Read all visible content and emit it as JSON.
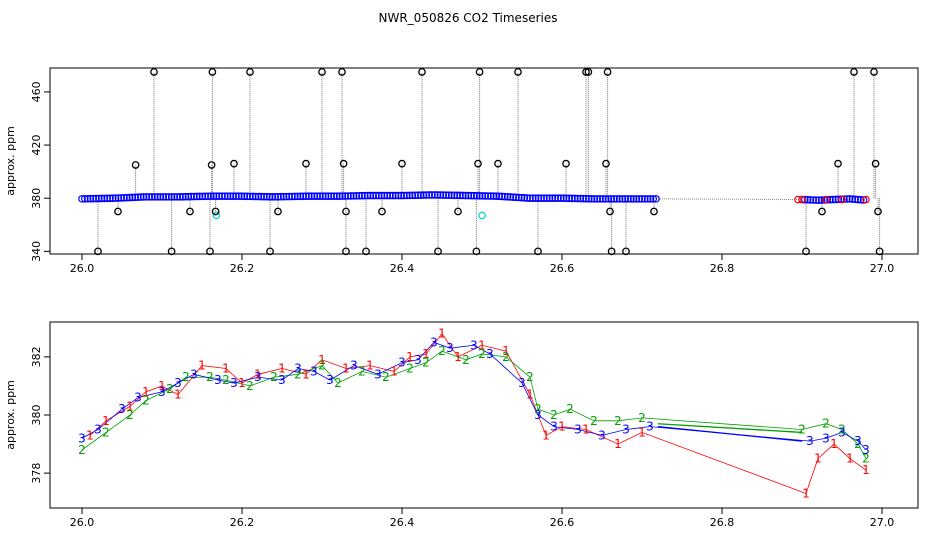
{
  "chart_data": {
    "title": "NWR_050826  CO2 Timeseries",
    "panels": [
      {
        "type": "scatter",
        "ylabel": "approx. ppm",
        "xlim": [
          26.0,
          27.0
        ],
        "ylim": [
          338,
          478
        ],
        "xticks": [
          {
            "value": 26.0,
            "label": "26.0"
          },
          {
            "value": 26.2,
            "label": "26.2"
          },
          {
            "value": 26.4,
            "label": "26.4"
          },
          {
            "value": 26.6,
            "label": "26.6"
          },
          {
            "value": 26.8,
            "label": "26.8"
          },
          {
            "value": 27.0,
            "label": "27.0"
          }
        ],
        "yticks": [
          {
            "value": 340,
            "label": "340"
          },
          {
            "value": 380,
            "label": "380"
          },
          {
            "value": 420,
            "label": "420"
          },
          {
            "value": 460,
            "label": "460"
          }
        ],
        "baseline": {
          "color": "#0000ff",
          "edge_color": "#008000",
          "x": [
            26.0,
            26.04,
            26.08,
            26.12,
            26.16,
            26.2,
            26.24,
            26.28,
            26.32,
            26.36,
            26.4,
            26.44,
            26.48,
            26.52,
            26.56,
            26.6,
            26.64,
            26.68,
            26.72
          ],
          "y": [
            379.5,
            380,
            381,
            381,
            381.5,
            381.5,
            381,
            381.5,
            381.5,
            382,
            382,
            382.5,
            382,
            381.5,
            380,
            380,
            379.5,
            379.5,
            379.5
          ],
          "x2": [
            26.9,
            26.92,
            26.94,
            26.96,
            26.98
          ],
          "y2": [
            379,
            378.5,
            379,
            379.5,
            378.5
          ]
        },
        "connector": {
          "x": [
            26.72,
            26.9
          ],
          "y": [
            379.5,
            379
          ]
        },
        "red_points": {
          "color": "#ff0000",
          "x": [
            26.895,
            26.9,
            26.93,
            26.95,
            26.98
          ],
          "y": [
            379,
            379,
            379,
            379,
            379
          ]
        },
        "cyan_points": {
          "color": "#00d0d0",
          "x": [
            26.168,
            26.5
          ],
          "y": [
            367,
            367
          ]
        },
        "outliers": {
          "color": "#000000",
          "x": [
            26.02,
            26.045,
            26.067,
            26.09,
            26.112,
            26.135,
            26.16,
            26.162,
            26.163,
            26.167,
            26.19,
            26.21,
            26.235,
            26.245,
            26.28,
            26.3,
            26.325,
            26.327,
            26.33,
            26.33,
            26.355,
            26.375,
            26.4,
            26.425,
            26.445,
            26.47,
            26.493,
            26.495,
            26.497,
            26.52,
            26.545,
            26.57,
            26.605,
            26.63,
            26.633,
            26.655,
            26.657,
            26.66,
            26.662,
            26.68,
            26.715,
            26.905,
            26.925,
            26.945,
            26.965,
            26.99,
            26.992,
            26.995,
            26.997
          ],
          "y": [
            340,
            370,
            405,
            475,
            340,
            370,
            340,
            405,
            475,
            370,
            406,
            475,
            340,
            370,
            406,
            475,
            475,
            406,
            370,
            340,
            340,
            370,
            406,
            475,
            340,
            370,
            340,
            406,
            475,
            406,
            475,
            340,
            406,
            475,
            475,
            406,
            475,
            370,
            340,
            340,
            370,
            340,
            370,
            406,
            475,
            475,
            406,
            370,
            340
          ]
        }
      },
      {
        "type": "scatter",
        "ylabel": "approx. ppm",
        "xlim": [
          26.0,
          27.0
        ],
        "ylim": [
          376.8,
          383.2
        ],
        "xticks": [
          {
            "value": 26.0,
            "label": "26.0"
          },
          {
            "value": 26.2,
            "label": "26.2"
          },
          {
            "value": 26.4,
            "label": "26.4"
          },
          {
            "value": 26.6,
            "label": "26.6"
          },
          {
            "value": 26.8,
            "label": "26.8"
          },
          {
            "value": 27.0,
            "label": "27.0"
          }
        ],
        "yticks": [
          {
            "value": 378,
            "label": "378"
          },
          {
            "value": 380,
            "label": "380"
          },
          {
            "value": 382,
            "label": "382"
          }
        ],
        "series": [
          {
            "label": "1",
            "color": "#ff0000",
            "x": [
              26.01,
              26.03,
              26.06,
              26.08,
              26.1,
              26.12,
              26.15,
              26.18,
              26.2,
              26.22,
              26.25,
              26.28,
              26.3,
              26.33,
              26.36,
              26.39,
              26.41,
              26.43,
              26.45,
              26.47,
              26.5,
              26.53,
              26.56,
              26.58,
              26.6,
              26.63,
              26.67,
              26.7,
              26.905,
              26.92,
              26.94,
              26.96,
              26.98
            ],
            "y": [
              379.3,
              379.8,
              380.3,
              380.8,
              381,
              380.7,
              381.7,
              381.6,
              381.1,
              381.4,
              381.6,
              381.4,
              381.9,
              381.6,
              381.7,
              381.5,
              382,
              382.1,
              382.8,
              382,
              382.4,
              382.2,
              380.7,
              379.3,
              379.6,
              379.5,
              379,
              379.4,
              377.3,
              378.5,
              379,
              378.5,
              378.1
            ],
            "line": false
          },
          {
            "label": "2",
            "color": "#00a000",
            "x": [
              26.0,
              26.03,
              26.06,
              26.08,
              26.11,
              26.13,
              26.16,
              26.18,
              26.21,
              26.24,
              26.27,
              26.3,
              26.32,
              26.35,
              26.38,
              26.41,
              26.43,
              26.45,
              26.48,
              26.5,
              26.53,
              26.56,
              26.57,
              26.59,
              26.61,
              26.64,
              26.67,
              26.7,
              26.9,
              26.93,
              26.95,
              26.97,
              26.98
            ],
            "y": [
              378.8,
              379.4,
              380,
              380.5,
              380.9,
              381.3,
              381.3,
              381.2,
              381,
              381.3,
              381.4,
              381.7,
              381.1,
              381.5,
              381.3,
              381.6,
              381.8,
              382.2,
              381.9,
              382.1,
              382,
              381.3,
              380.2,
              380,
              380.2,
              379.8,
              379.8,
              379.9,
              379.5,
              379.7,
              379.5,
              379,
              378.5
            ],
            "line_from": [
              26.72,
              379.7
            ],
            "line_to": [
              26.9,
              379.4
            ]
          },
          {
            "label": "3",
            "color": "#0000ff",
            "x": [
              26.0,
              26.02,
              26.05,
              26.07,
              26.1,
              26.12,
              26.14,
              26.17,
              26.19,
              26.22,
              26.25,
              26.27,
              26.29,
              26.31,
              26.34,
              26.37,
              26.4,
              26.42,
              26.44,
              26.46,
              26.49,
              26.51,
              26.55,
              26.57,
              26.59,
              26.62,
              26.65,
              26.68,
              26.71,
              26.91,
              26.93,
              26.95,
              26.97,
              26.98
            ],
            "y": [
              379.2,
              379.5,
              380.2,
              380.6,
              380.8,
              381.1,
              381.4,
              381.2,
              381.1,
              381.3,
              381.2,
              381.6,
              381.5,
              381.2,
              381.7,
              381.4,
              381.8,
              381.9,
              382.5,
              382.3,
              382.4,
              382.1,
              381.1,
              380,
              379.6,
              379.5,
              379.3,
              379.5,
              379.6,
              379.1,
              379.2,
              379.4,
              379.1,
              378.8
            ],
            "line_from": [
              26.72,
              379.6
            ],
            "line_to": [
              26.9,
              379.1
            ]
          }
        ]
      }
    ]
  }
}
